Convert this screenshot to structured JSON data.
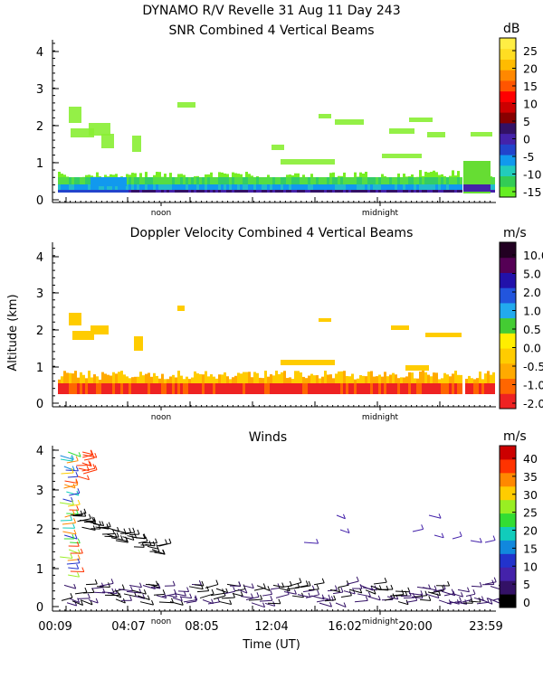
{
  "header": {
    "title_line1": "DYNAMO R/V Revelle  31 Aug 11 Day 243",
    "title_line2": "SNR Combined 4 Vertical Beams"
  },
  "ylabel": "Altitude (km)",
  "xlabel": "Time (UT)",
  "x_ticks": [
    "00:09",
    "04:07",
    "08:05",
    "12:04",
    "16:02",
    "20:00",
    "23:59"
  ],
  "markers": [
    "noon",
    "midnight"
  ],
  "colors": {
    "snr_palette": [
      "#66ee22",
      "#33cc55",
      "#22ccbb",
      "#1199ee",
      "#2244cc",
      "#4422aa",
      "#331166",
      "#880000",
      "#cc0000",
      "#ff0000",
      "#ff5500",
      "#ff8800",
      "#ffbb00",
      "#ffdd22",
      "#ffee44"
    ],
    "vel_palette": [
      "#ee2222",
      "#ff6600",
      "#ffaa00",
      "#ffcc00",
      "#ffee00",
      "#44cc33",
      "#22aaee",
      "#2255dd",
      "#2211aa",
      "#550055",
      "#220022"
    ],
    "wind_palette": [
      "#000000",
      "#331166",
      "#4422aa",
      "#2233cc",
      "#1188dd",
      "#11ccbb",
      "#33dd33",
      "#99ee22",
      "#ffcc00",
      "#ff8800",
      "#ff3300",
      "#cc0000"
    ]
  },
  "chart_data": [
    {
      "type": "heatmap",
      "title": "SNR Combined 4 Vertical Beams",
      "unit": "dB",
      "colorbar_ticks": [
        "25",
        "20",
        "15",
        "10",
        "5",
        "0",
        "-5",
        "-10",
        "-15"
      ],
      "yticks": [
        "0",
        "1",
        "2",
        "3",
        "4"
      ],
      "ylim": [
        0,
        4.3
      ],
      "grid": false
    },
    {
      "type": "heatmap",
      "title": "Doppler Velocity Combined 4 Vertical Beams",
      "unit": "m/s",
      "colorbar_ticks": [
        "10.0",
        "5.0",
        "2.0",
        "1.0",
        "0.5",
        "0.0",
        "-0.5",
        "-1.0",
        "-2.0"
      ],
      "yticks": [
        "0",
        "1",
        "2",
        "3",
        "4"
      ],
      "ylim": [
        0,
        4.3
      ],
      "grid": false
    },
    {
      "type": "scatter",
      "title": "Winds",
      "unit": "m/s",
      "colorbar_ticks": [
        "40",
        "35",
        "30",
        "25",
        "20",
        "15",
        "10",
        "5",
        "0"
      ],
      "yticks": [
        "0",
        "1",
        "2",
        "3",
        "4"
      ],
      "ylim": [
        0,
        4.1
      ],
      "grid": false
    }
  ]
}
